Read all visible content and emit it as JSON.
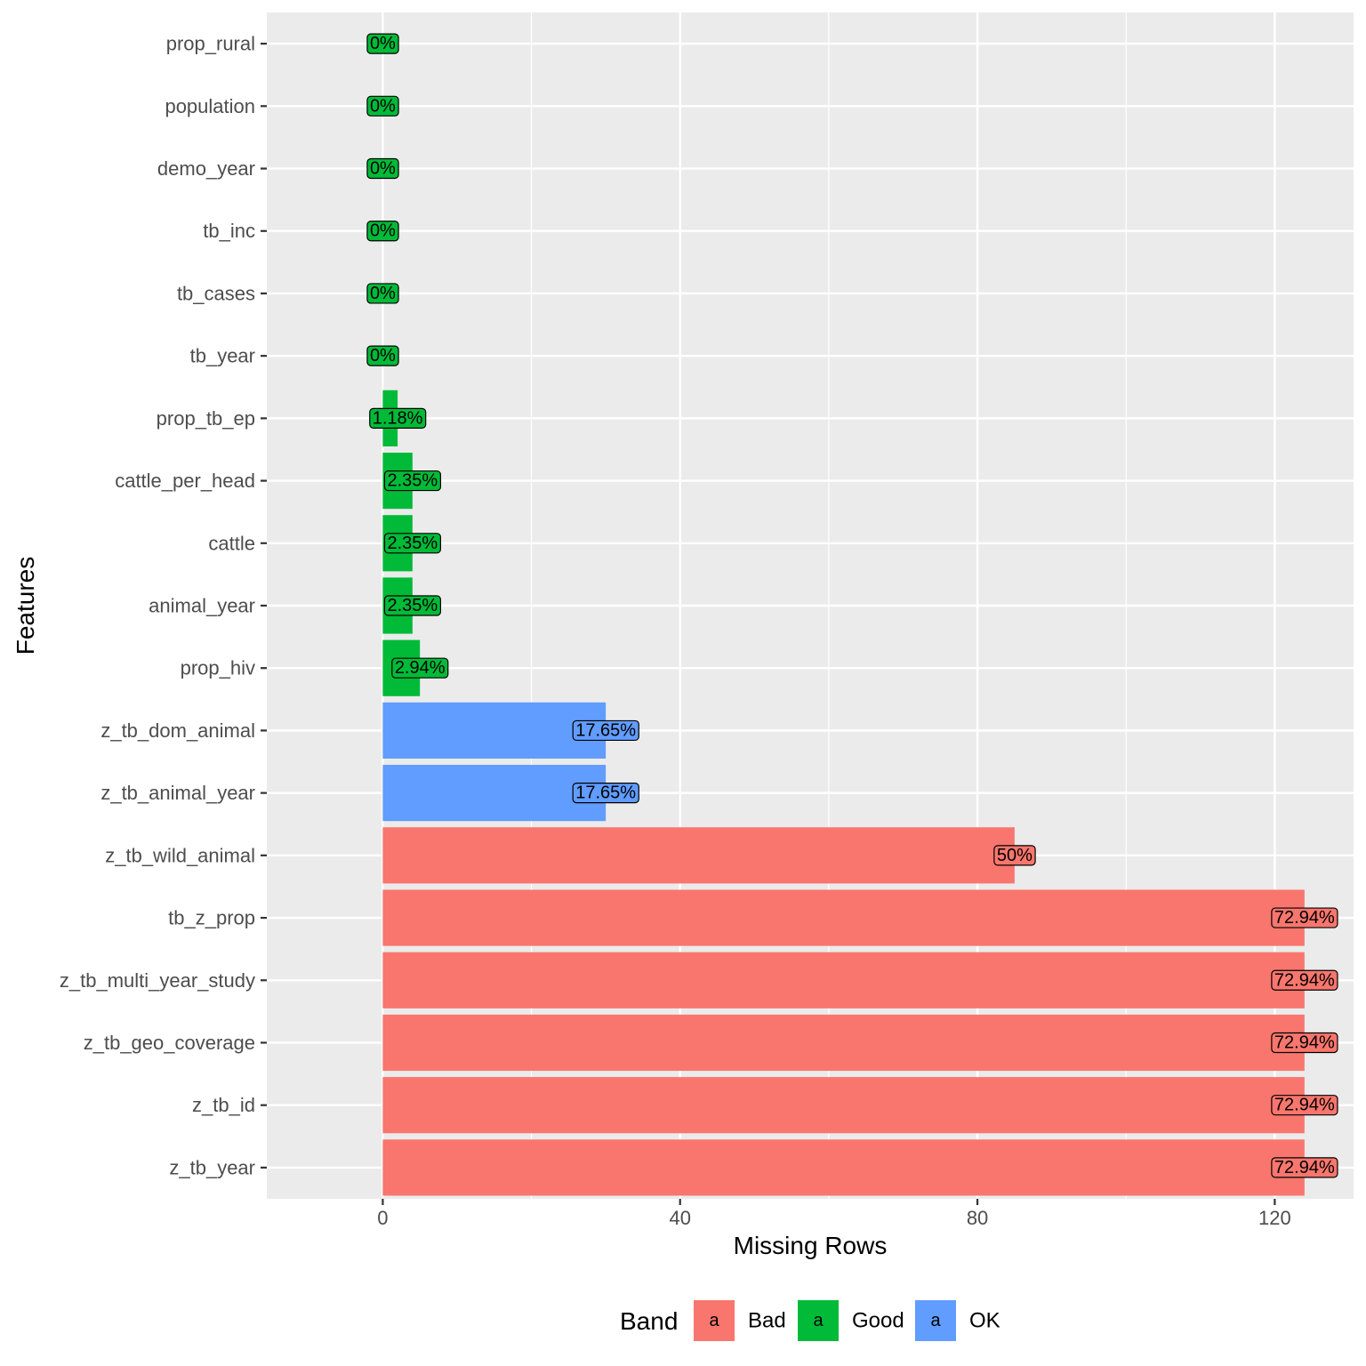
{
  "chart_data": {
    "type": "bar",
    "orientation": "horizontal",
    "title": "",
    "xlabel": "Missing Rows",
    "ylabel": "Features",
    "xlim": [
      -15.6,
      130.6
    ],
    "xticks": [
      0,
      40,
      80,
      120
    ],
    "grid": true,
    "categories": [
      "z_tb_year",
      "z_tb_id",
      "z_tb_geo_coverage",
      "z_tb_multi_year_study",
      "tb_z_prop",
      "z_tb_wild_animal",
      "z_tb_animal_year",
      "z_tb_dom_animal",
      "prop_hiv",
      "animal_year",
      "cattle",
      "cattle_per_head",
      "prop_tb_ep",
      "tb_year",
      "tb_cases",
      "tb_inc",
      "demo_year",
      "population",
      "prop_rural"
    ],
    "values": [
      124,
      124,
      124,
      124,
      124,
      85,
      30,
      30,
      5,
      4,
      4,
      4,
      2,
      0,
      0,
      0,
      0,
      0,
      0
    ],
    "labels": [
      "72.94%",
      "72.94%",
      "72.94%",
      "72.94%",
      "72.94%",
      "50%",
      "17.65%",
      "17.65%",
      "2.94%",
      "2.35%",
      "2.35%",
      "2.35%",
      "1.18%",
      "0%",
      "0%",
      "0%",
      "0%",
      "0%",
      "0%"
    ],
    "bands": [
      "Bad",
      "Bad",
      "Bad",
      "Bad",
      "Bad",
      "Bad",
      "OK",
      "OK",
      "Good",
      "Good",
      "Good",
      "Good",
      "Good",
      "Good",
      "Good",
      "Good",
      "Good",
      "Good",
      "Good"
    ],
    "band_colors": {
      "Bad": "#F8766D",
      "Good": "#00BA38",
      "OK": "#619CFF"
    },
    "legend": {
      "title": "Band",
      "position": "bottom",
      "key_glyph": "a",
      "entries": [
        {
          "label": "Bad",
          "color": "#F8766D"
        },
        {
          "label": "Good",
          "color": "#00BA38"
        },
        {
          "label": "OK",
          "color": "#619CFF"
        }
      ]
    }
  }
}
